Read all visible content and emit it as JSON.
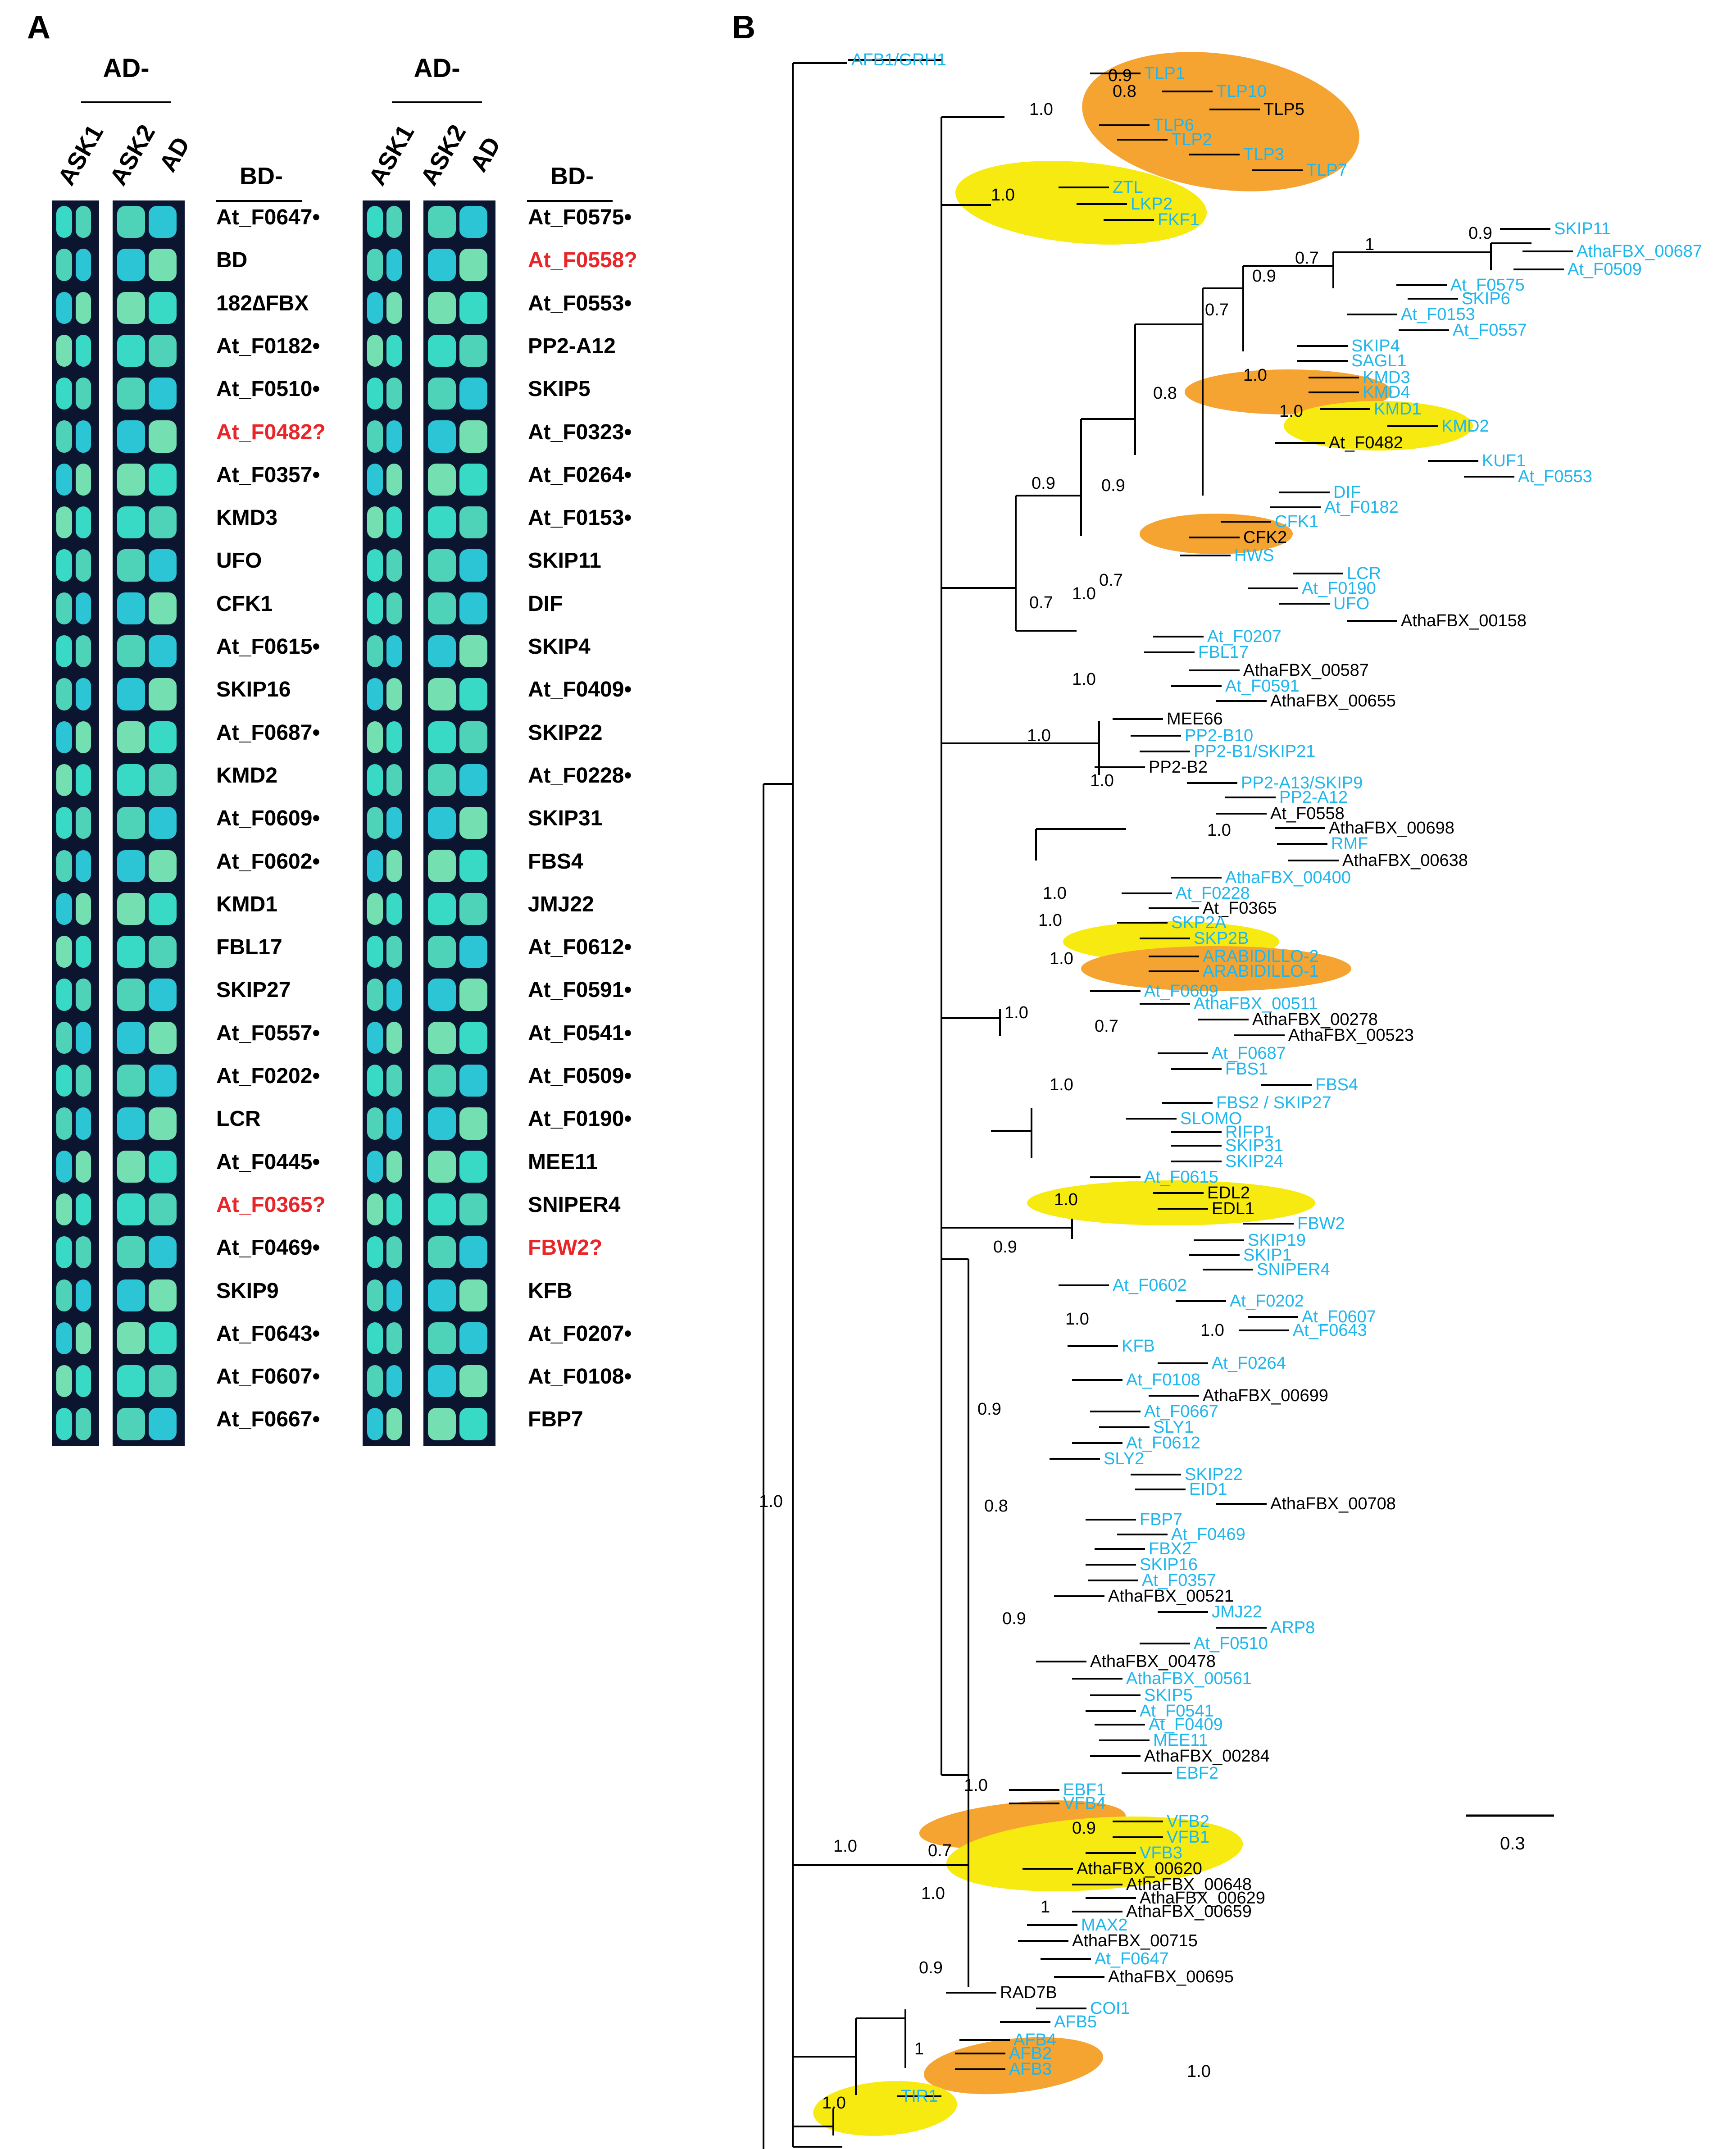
{
  "panel_a": {
    "letter": "A",
    "ad_header": "AD-",
    "bd_header": "BD-",
    "columns": [
      "ASK1",
      "ASK2",
      "AD"
    ],
    "left_labels": [
      {
        "text": "At_F0647•",
        "red": false
      },
      {
        "text": "BD",
        "red": false
      },
      {
        "text": "182∆FBX",
        "red": false
      },
      {
        "text": "At_F0182•",
        "red": false
      },
      {
        "text": "At_F0510•",
        "red": false
      },
      {
        "text": "At_F0482?",
        "red": true
      },
      {
        "text": "At_F0357•",
        "red": false
      },
      {
        "text": "KMD3",
        "red": false
      },
      {
        "text": "UFO",
        "red": false
      },
      {
        "text": "CFK1",
        "red": false
      },
      {
        "text": "At_F0615•",
        "red": false
      },
      {
        "text": "SKIP16",
        "red": false
      },
      {
        "text": "At_F0687•",
        "red": false
      },
      {
        "text": "KMD2",
        "red": false
      },
      {
        "text": "At_F0609•",
        "red": false
      },
      {
        "text": "At_F0602•",
        "red": false
      },
      {
        "text": "KMD1",
        "red": false
      },
      {
        "text": "FBL17",
        "red": false
      },
      {
        "text": "SKIP27",
        "red": false
      },
      {
        "text": "At_F0557•",
        "red": false
      },
      {
        "text": "At_F0202•",
        "red": false
      },
      {
        "text": "LCR",
        "red": false
      },
      {
        "text": "At_F0445•",
        "red": false
      },
      {
        "text": "At_F0365?",
        "red": true
      },
      {
        "text": "At_F0469•",
        "red": false
      },
      {
        "text": "SKIP9",
        "red": false
      },
      {
        "text": "At_F0643•",
        "red": false
      },
      {
        "text": "At_F0607•",
        "red": false
      },
      {
        "text": "At_F0667•",
        "red": false
      }
    ],
    "right_labels": [
      {
        "text": "At_F0575•",
        "red": false
      },
      {
        "text": "At_F0558?",
        "red": true
      },
      {
        "text": "At_F0553•",
        "red": false
      },
      {
        "text": "PP2-A12",
        "red": false
      },
      {
        "text": "SKIP5",
        "red": false
      },
      {
        "text": "At_F0323•",
        "red": false
      },
      {
        "text": "At_F0264•",
        "red": false
      },
      {
        "text": "At_F0153•",
        "red": false
      },
      {
        "text": "SKIP11",
        "red": false
      },
      {
        "text": "DIF",
        "red": false
      },
      {
        "text": "SKIP4",
        "red": false
      },
      {
        "text": "At_F0409•",
        "red": false
      },
      {
        "text": "SKIP22",
        "red": false
      },
      {
        "text": "At_F0228•",
        "red": false
      },
      {
        "text": "SKIP31",
        "red": false
      },
      {
        "text": "FBS4",
        "red": false
      },
      {
        "text": "JMJ22",
        "red": false
      },
      {
        "text": "At_F0612•",
        "red": false
      },
      {
        "text": "At_F0591•",
        "red": false
      },
      {
        "text": "At_F0541•",
        "red": false
      },
      {
        "text": "At_F0509•",
        "red": false
      },
      {
        "text": "At_F0190•",
        "red": false
      },
      {
        "text": "MEE11",
        "red": false
      },
      {
        "text": "SNIPER4",
        "red": false
      },
      {
        "text": "FBW2?",
        "red": true
      },
      {
        "text": "KFB",
        "red": false
      },
      {
        "text": "At_F0207•",
        "red": false
      },
      {
        "text": "At_F0108•",
        "red": false
      },
      {
        "text": "FBP7",
        "red": false
      }
    ]
  },
  "panel_b": {
    "letter": "B",
    "scale_label": "0.3",
    "colors": {
      "cyan": "#1fb6ec",
      "black": "#000000",
      "orange": "#f5a431",
      "yellow": "#f7ea10",
      "red": "#e8262a"
    },
    "support_values": [
      "1.0",
      "0.9",
      "0.8",
      "1.0",
      "1.0",
      "0.7",
      "0.9",
      "1",
      "0.9",
      "0.7",
      "1.0",
      "0.8",
      "1.0",
      "0.9",
      "0.9",
      "1.0",
      "0.7",
      "0.7",
      "1.0",
      "1.0",
      "1.0",
      "1.0",
      "1.0",
      "1.0",
      "1.0",
      "1.0",
      "0.7",
      "1.0",
      "1.0",
      "0.9",
      "1.0",
      "1.0",
      "0.9",
      "0.8",
      "0.9",
      "1.0",
      "1.0",
      "0.7",
      "0.9",
      "1.0",
      "1",
      "0.9",
      "1",
      "1.0",
      "1.0"
    ],
    "taxa": [
      {
        "name": "AFB1/GRH1",
        "color": "cyan"
      },
      {
        "name": "TLP1",
        "color": "cyan"
      },
      {
        "name": "TLP10",
        "color": "cyan"
      },
      {
        "name": "TLP5",
        "color": "black"
      },
      {
        "name": "TLP6",
        "color": "cyan"
      },
      {
        "name": "TLP2",
        "color": "cyan"
      },
      {
        "name": "TLP3",
        "color": "cyan"
      },
      {
        "name": "TLP7",
        "color": "cyan"
      },
      {
        "name": "ZTL",
        "color": "cyan"
      },
      {
        "name": "LKP2",
        "color": "cyan"
      },
      {
        "name": "FKF1",
        "color": "cyan"
      },
      {
        "name": "SKIP11",
        "color": "cyan"
      },
      {
        "name": "AthaFBX_00687",
        "color": "cyan"
      },
      {
        "name": "At_F0509",
        "color": "cyan"
      },
      {
        "name": "At_F0575",
        "color": "cyan"
      },
      {
        "name": "SKIP6",
        "color": "cyan"
      },
      {
        "name": "At_F0153",
        "color": "cyan"
      },
      {
        "name": "At_F0557",
        "color": "cyan"
      },
      {
        "name": "SKIP4",
        "color": "cyan"
      },
      {
        "name": "SAGL1",
        "color": "cyan"
      },
      {
        "name": "KMD3",
        "color": "cyan"
      },
      {
        "name": "KMD4",
        "color": "cyan"
      },
      {
        "name": "KMD1",
        "color": "cyan"
      },
      {
        "name": "KMD2",
        "color": "cyan"
      },
      {
        "name": "At_F0482",
        "color": "black"
      },
      {
        "name": "KUF1",
        "color": "cyan"
      },
      {
        "name": "At_F0553",
        "color": "cyan"
      },
      {
        "name": "DIF",
        "color": "cyan"
      },
      {
        "name": "At_F0182",
        "color": "cyan"
      },
      {
        "name": "CFK1",
        "color": "cyan"
      },
      {
        "name": "CFK2",
        "color": "black"
      },
      {
        "name": "HWS",
        "color": "cyan"
      },
      {
        "name": "LCR",
        "color": "cyan"
      },
      {
        "name": "At_F0190",
        "color": "cyan"
      },
      {
        "name": "UFO",
        "color": "cyan"
      },
      {
        "name": "AthaFBX_00158",
        "color": "black"
      },
      {
        "name": "At_F0207",
        "color": "cyan"
      },
      {
        "name": "FBL17",
        "color": "cyan"
      },
      {
        "name": "AthaFBX_00587",
        "color": "black"
      },
      {
        "name": "At_F0591",
        "color": "cyan"
      },
      {
        "name": "AthaFBX_00655",
        "color": "black"
      },
      {
        "name": "MEE66",
        "color": "black"
      },
      {
        "name": "PP2-B10",
        "color": "cyan"
      },
      {
        "name": "PP2-B1/SKIP21",
        "color": "cyan"
      },
      {
        "name": "PP2-B2",
        "color": "black"
      },
      {
        "name": "PP2-A13/SKIP9",
        "color": "cyan"
      },
      {
        "name": "PP2-A12",
        "color": "cyan"
      },
      {
        "name": "At_F0558",
        "color": "black"
      },
      {
        "name": "AthaFBX_00698",
        "color": "black"
      },
      {
        "name": "RMF",
        "color": "cyan"
      },
      {
        "name": "AthaFBX_00638",
        "color": "black"
      },
      {
        "name": "AthaFBX_00400",
        "color": "cyan"
      },
      {
        "name": "At_F0228",
        "color": "cyan"
      },
      {
        "name": "At_F0365",
        "color": "black"
      },
      {
        "name": "SKP2A",
        "color": "cyan"
      },
      {
        "name": "SKP2B",
        "color": "cyan"
      },
      {
        "name": "ARABIDILLO-2",
        "color": "cyan"
      },
      {
        "name": "ARABIDILLO-1",
        "color": "cyan"
      },
      {
        "name": "At_F0609",
        "color": "cyan"
      },
      {
        "name": "AthaFBX_00511",
        "color": "cyan"
      },
      {
        "name": "AthaFBX_00278",
        "color": "black"
      },
      {
        "name": "AthaFBX_00523",
        "color": "black"
      },
      {
        "name": "At_F0687",
        "color": "cyan"
      },
      {
        "name": "FBS1",
        "color": "cyan"
      },
      {
        "name": "FBS4",
        "color": "cyan"
      },
      {
        "name": "FBS2 / SKIP27",
        "color": "cyan"
      },
      {
        "name": "SLOMO",
        "color": "cyan"
      },
      {
        "name": "RIFP1",
        "color": "cyan"
      },
      {
        "name": "SKIP31",
        "color": "cyan"
      },
      {
        "name": "SKIP24",
        "color": "cyan"
      },
      {
        "name": "At_F0615",
        "color": "cyan"
      },
      {
        "name": "EDL2",
        "color": "black"
      },
      {
        "name": "EDL1",
        "color": "black"
      },
      {
        "name": "FBW2",
        "color": "cyan"
      },
      {
        "name": "SKIP19",
        "color": "cyan"
      },
      {
        "name": "SKIP1",
        "color": "cyan"
      },
      {
        "name": "SNIPER4",
        "color": "cyan"
      },
      {
        "name": "At_F0602",
        "color": "cyan"
      },
      {
        "name": "At_F0202",
        "color": "cyan"
      },
      {
        "name": "At_F0607",
        "color": "cyan"
      },
      {
        "name": "At_F0643",
        "color": "cyan"
      },
      {
        "name": "KFB",
        "color": "cyan"
      },
      {
        "name": "At_F0264",
        "color": "cyan"
      },
      {
        "name": "At_F0108",
        "color": "cyan"
      },
      {
        "name": "AthaFBX_00699",
        "color": "black"
      },
      {
        "name": "At_F0667",
        "color": "cyan"
      },
      {
        "name": "SLY1",
        "color": "cyan"
      },
      {
        "name": "At_F0612",
        "color": "cyan"
      },
      {
        "name": "SLY2",
        "color": "cyan"
      },
      {
        "name": "SKIP22",
        "color": "cyan"
      },
      {
        "name": "EID1",
        "color": "cyan"
      },
      {
        "name": "AthaFBX_00708",
        "color": "black"
      },
      {
        "name": "FBP7",
        "color": "cyan"
      },
      {
        "name": "At_F0469",
        "color": "cyan"
      },
      {
        "name": "FBX2",
        "color": "cyan"
      },
      {
        "name": "SKIP16",
        "color": "cyan"
      },
      {
        "name": "At_F0357",
        "color": "cyan"
      },
      {
        "name": "AthaFBX_00521",
        "color": "black"
      },
      {
        "name": "JMJ22",
        "color": "cyan"
      },
      {
        "name": "ARP8",
        "color": "cyan"
      },
      {
        "name": "At_F0510",
        "color": "cyan"
      },
      {
        "name": "AthaFBX_00478",
        "color": "black"
      },
      {
        "name": "AthaFBX_00561",
        "color": "cyan"
      },
      {
        "name": "SKIP5",
        "color": "cyan"
      },
      {
        "name": "At_F0541",
        "color": "cyan"
      },
      {
        "name": "At_F0409",
        "color": "cyan"
      },
      {
        "name": "MEE11",
        "color": "cyan"
      },
      {
        "name": "AthaFBX_00284",
        "color": "black"
      },
      {
        "name": "EBF2",
        "color": "cyan"
      },
      {
        "name": "EBF1",
        "color": "cyan"
      },
      {
        "name": "VFB4",
        "color": "cyan"
      },
      {
        "name": "VFB2",
        "color": "cyan"
      },
      {
        "name": "VFB1",
        "color": "cyan"
      },
      {
        "name": "VFB3",
        "color": "cyan"
      },
      {
        "name": "AthaFBX_00620",
        "color": "black"
      },
      {
        "name": "AthaFBX_00648",
        "color": "black"
      },
      {
        "name": "AthaFBX_00629",
        "color": "black"
      },
      {
        "name": "AthaFBX_00659",
        "color": "black"
      },
      {
        "name": "MAX2",
        "color": "cyan"
      },
      {
        "name": "AthaFBX_00715",
        "color": "black"
      },
      {
        "name": "At_F0647",
        "color": "cyan"
      },
      {
        "name": "AthaFBX_00695",
        "color": "black"
      },
      {
        "name": "RAD7B",
        "color": "black"
      },
      {
        "name": "COI1",
        "color": "cyan"
      },
      {
        "name": "AFB5",
        "color": "cyan"
      },
      {
        "name": "AFB4",
        "color": "cyan"
      },
      {
        "name": "AFB2",
        "color": "cyan"
      },
      {
        "name": "AFB3",
        "color": "cyan"
      },
      {
        "name": "TIR1",
        "color": "cyan"
      }
    ]
  }
}
